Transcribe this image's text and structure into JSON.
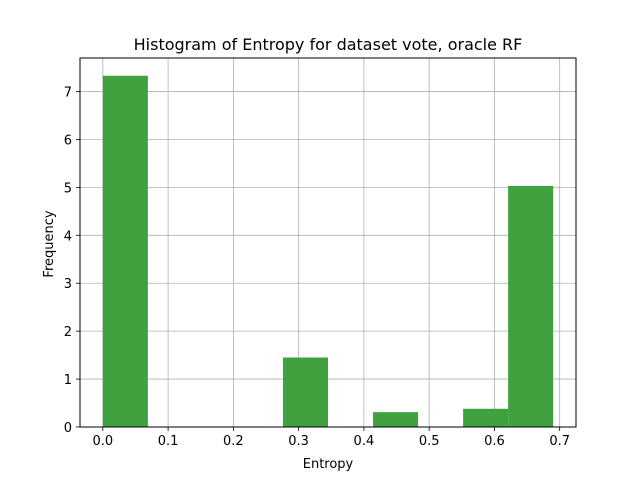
{
  "chart_data": {
    "type": "bar",
    "title": "Histogram of Entropy for dataset vote, oracle RF",
    "xlabel": "Entropy",
    "ylabel": "Frequency",
    "xlim": [
      -0.035,
      0.725
    ],
    "ylim": [
      0,
      7.7
    ],
    "xticks": [
      0.0,
      0.1,
      0.2,
      0.3,
      0.4,
      0.5,
      0.6,
      0.7
    ],
    "xtick_labels": [
      "0.0",
      "0.1",
      "0.2",
      "0.3",
      "0.4",
      "0.5",
      "0.6",
      "0.7"
    ],
    "yticks": [
      0,
      1,
      2,
      3,
      4,
      5,
      6,
      7
    ],
    "ytick_labels": [
      "0",
      "1",
      "2",
      "3",
      "4",
      "5",
      "6",
      "7"
    ],
    "grid": true,
    "bar_color": "#3fa23f",
    "bins": [
      {
        "x0": 0.0,
        "x1": 0.069,
        "value": 7.33
      },
      {
        "x0": 0.069,
        "x1": 0.138,
        "value": 0
      },
      {
        "x0": 0.138,
        "x1": 0.207,
        "value": 0
      },
      {
        "x0": 0.207,
        "x1": 0.276,
        "value": 0
      },
      {
        "x0": 0.276,
        "x1": 0.345,
        "value": 1.45
      },
      {
        "x0": 0.345,
        "x1": 0.414,
        "value": 0
      },
      {
        "x0": 0.414,
        "x1": 0.483,
        "value": 0.31
      },
      {
        "x0": 0.483,
        "x1": 0.552,
        "value": 0
      },
      {
        "x0": 0.552,
        "x1": 0.621,
        "value": 0.38
      },
      {
        "x0": 0.621,
        "x1": 0.69,
        "value": 5.03
      }
    ]
  }
}
